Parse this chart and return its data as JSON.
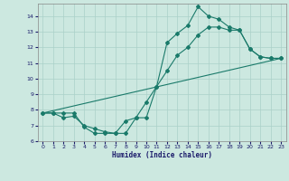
{
  "xlabel": "Humidex (Indice chaleur)",
  "bg_color": "#cce8e0",
  "grid_color": "#aad0c8",
  "line_color": "#1a7a6a",
  "xlim": [
    -0.5,
    23.5
  ],
  "ylim": [
    6,
    14.8
  ],
  "xticks": [
    0,
    1,
    2,
    3,
    4,
    5,
    6,
    7,
    8,
    9,
    10,
    11,
    12,
    13,
    14,
    15,
    16,
    17,
    18,
    19,
    20,
    21,
    22,
    23
  ],
  "yticks": [
    6,
    7,
    8,
    9,
    10,
    11,
    12,
    13,
    14
  ],
  "line1_x": [
    0,
    1,
    2,
    3,
    4,
    5,
    6,
    7,
    8,
    9,
    10,
    11,
    12,
    13,
    14,
    15,
    16,
    17,
    18,
    19,
    20,
    21,
    22,
    23
  ],
  "line1_y": [
    7.8,
    7.8,
    7.8,
    7.8,
    6.9,
    6.5,
    6.5,
    6.5,
    6.5,
    7.5,
    7.5,
    9.5,
    12.3,
    12.9,
    13.4,
    14.6,
    14.0,
    13.8,
    13.3,
    13.1,
    11.9,
    11.4,
    11.3,
    11.3
  ],
  "line2_x": [
    0,
    1,
    2,
    3,
    4,
    5,
    6,
    7,
    8,
    9,
    10,
    11,
    12,
    13,
    14,
    15,
    16,
    17,
    18,
    19,
    20,
    21,
    22,
    23
  ],
  "line2_y": [
    7.8,
    7.8,
    7.5,
    7.6,
    7.0,
    6.8,
    6.6,
    6.5,
    7.3,
    7.5,
    8.5,
    9.5,
    10.5,
    11.5,
    12.0,
    12.8,
    13.3,
    13.3,
    13.1,
    13.1,
    11.9,
    11.4,
    11.3,
    11.3
  ],
  "line3_x": [
    0,
    23
  ],
  "line3_y": [
    7.8,
    11.3
  ]
}
